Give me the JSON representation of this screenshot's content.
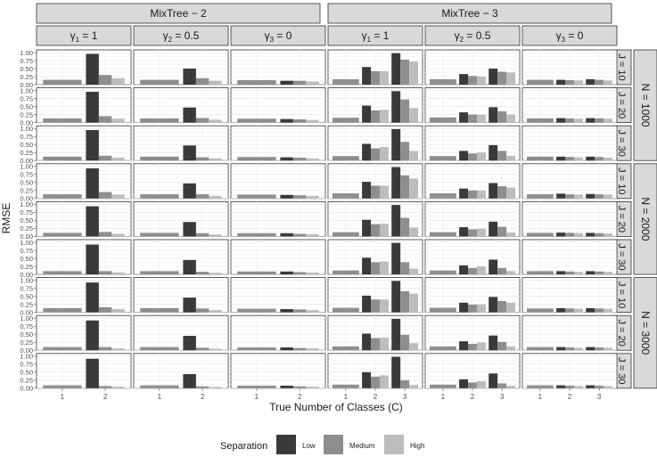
{
  "chart_data": {
    "type": "bar",
    "ylabel": "RMSE",
    "xlabel": "True Number of Classes (C)",
    "ylim": [
      0,
      1
    ],
    "yticks": [
      "0.00",
      "0.25",
      "0.50",
      "0.75",
      "1.00"
    ],
    "grid": true,
    "legend": {
      "title": "Separation",
      "position": "bottom",
      "items": [
        {
          "name": "Low",
          "color": "#3a3a3a"
        },
        {
          "name": "Medium",
          "color": "#8e8e8e"
        },
        {
          "name": "High",
          "color": "#bdbdbd"
        }
      ]
    },
    "models": [
      {
        "label": "MixTree − 2",
        "categories": [
          "1",
          "2"
        ]
      },
      {
        "label": "MixTree − 3",
        "categories": [
          "1",
          "2",
          "3"
        ]
      }
    ],
    "gammas": [
      {
        "sym": "γ",
        "sub": "1",
        "rest": " = 1"
      },
      {
        "sym": "γ",
        "sub": "2",
        "rest": " = 0.5"
      },
      {
        "sym": "γ",
        "sub": "3",
        "rest": " = 0"
      }
    ],
    "n_groups": [
      {
        "label": "N = 1000",
        "rows": [
          "J = 10",
          "J = 20",
          "J = 30"
        ]
      },
      {
        "label": "N = 2000",
        "rows": [
          "J = 10",
          "J = 20",
          "J = 30"
        ]
      },
      {
        "label": "N = 3000",
        "rows": [
          "J = 10",
          "J = 20",
          "J = 30"
        ]
      }
    ],
    "series": [
      "Low",
      "Medium",
      "High"
    ],
    "values": [
      [
        [
          [
            0.15
          ],
          [
            0.96,
            0.3,
            0.2
          ]
        ],
        [
          [
            0.15
          ],
          [
            0.5,
            0.2,
            0.12
          ]
        ],
        [
          [
            0.14
          ],
          [
            0.12,
            0.12,
            0.1
          ]
        ],
        [
          [
            0.17
          ],
          [
            0.55,
            0.42,
            0.42
          ],
          [
            0.98,
            0.78,
            0.72
          ]
        ],
        [
          [
            0.17
          ],
          [
            0.33,
            0.27,
            0.25
          ],
          [
            0.5,
            0.4,
            0.38
          ]
        ],
        [
          [
            0.15
          ],
          [
            0.15,
            0.14,
            0.13
          ],
          [
            0.17,
            0.15,
            0.13
          ]
        ]
      ],
      [
        [
          [
            0.13
          ],
          [
            0.96,
            0.2,
            0.12
          ]
        ],
        [
          [
            0.13
          ],
          [
            0.47,
            0.14,
            0.09
          ]
        ],
        [
          [
            0.12
          ],
          [
            0.11,
            0.1,
            0.08
          ]
        ],
        [
          [
            0.15
          ],
          [
            0.53,
            0.38,
            0.4
          ],
          [
            0.98,
            0.72,
            0.45
          ]
        ],
        [
          [
            0.16
          ],
          [
            0.32,
            0.25,
            0.25
          ],
          [
            0.48,
            0.35,
            0.25
          ]
        ],
        [
          [
            0.13
          ],
          [
            0.14,
            0.13,
            0.12
          ],
          [
            0.14,
            0.13,
            0.12
          ]
        ]
      ],
      [
        [
          [
            0.12
          ],
          [
            0.95,
            0.15,
            0.09
          ]
        ],
        [
          [
            0.12
          ],
          [
            0.47,
            0.1,
            0.07
          ]
        ],
        [
          [
            0.11
          ],
          [
            0.1,
            0.09,
            0.07
          ]
        ],
        [
          [
            0.14
          ],
          [
            0.52,
            0.38,
            0.42
          ],
          [
            0.98,
            0.58,
            0.3
          ]
        ],
        [
          [
            0.14
          ],
          [
            0.3,
            0.22,
            0.25
          ],
          [
            0.48,
            0.3,
            0.15
          ]
        ],
        [
          [
            0.12
          ],
          [
            0.12,
            0.11,
            0.1
          ],
          [
            0.12,
            0.11,
            0.09
          ]
        ]
      ],
      [
        [
          [
            0.13
          ],
          [
            0.94,
            0.2,
            0.12
          ]
        ],
        [
          [
            0.13
          ],
          [
            0.47,
            0.13,
            0.08
          ]
        ],
        [
          [
            0.12
          ],
          [
            0.11,
            0.1,
            0.08
          ]
        ],
        [
          [
            0.16
          ],
          [
            0.52,
            0.4,
            0.4
          ],
          [
            0.98,
            0.72,
            0.62
          ]
        ],
        [
          [
            0.16
          ],
          [
            0.31,
            0.25,
            0.25
          ],
          [
            0.48,
            0.38,
            0.34
          ]
        ],
        [
          [
            0.13
          ],
          [
            0.15,
            0.13,
            0.12
          ],
          [
            0.14,
            0.13,
            0.12
          ]
        ]
      ],
      [
        [
          [
            0.11
          ],
          [
            0.94,
            0.14,
            0.08
          ]
        ],
        [
          [
            0.11
          ],
          [
            0.45,
            0.1,
            0.06
          ]
        ],
        [
          [
            0.1
          ],
          [
            0.1,
            0.08,
            0.07
          ]
        ],
        [
          [
            0.13
          ],
          [
            0.52,
            0.38,
            0.4
          ],
          [
            0.98,
            0.58,
            0.28
          ]
        ],
        [
          [
            0.13
          ],
          [
            0.29,
            0.22,
            0.24
          ],
          [
            0.46,
            0.3,
            0.12
          ]
        ],
        [
          [
            0.11
          ],
          [
            0.12,
            0.11,
            0.1
          ],
          [
            0.11,
            0.1,
            0.09
          ]
        ]
      ],
      [
        [
          [
            0.1
          ],
          [
            0.93,
            0.1,
            0.06
          ]
        ],
        [
          [
            0.1
          ],
          [
            0.45,
            0.08,
            0.05
          ]
        ],
        [
          [
            0.09
          ],
          [
            0.09,
            0.07,
            0.06
          ]
        ],
        [
          [
            0.12
          ],
          [
            0.52,
            0.38,
            0.4
          ],
          [
            0.98,
            0.38,
            0.18
          ]
        ],
        [
          [
            0.12
          ],
          [
            0.28,
            0.2,
            0.25
          ],
          [
            0.46,
            0.2,
            0.1
          ]
        ],
        [
          [
            0.1
          ],
          [
            0.1,
            0.09,
            0.08
          ],
          [
            0.1,
            0.09,
            0.08
          ]
        ]
      ],
      [
        [
          [
            0.13
          ],
          [
            0.93,
            0.16,
            0.1
          ]
        ],
        [
          [
            0.13
          ],
          [
            0.46,
            0.12,
            0.07
          ]
        ],
        [
          [
            0.11
          ],
          [
            0.1,
            0.09,
            0.07
          ]
        ],
        [
          [
            0.14
          ],
          [
            0.52,
            0.4,
            0.4
          ],
          [
            0.98,
            0.66,
            0.58
          ]
        ],
        [
          [
            0.14
          ],
          [
            0.3,
            0.24,
            0.25
          ],
          [
            0.48,
            0.35,
            0.3
          ]
        ],
        [
          [
            0.12
          ],
          [
            0.13,
            0.12,
            0.11
          ],
          [
            0.13,
            0.12,
            0.11
          ]
        ]
      ],
      [
        [
          [
            0.1
          ],
          [
            0.93,
            0.1,
            0.06
          ]
        ],
        [
          [
            0.1
          ],
          [
            0.45,
            0.08,
            0.05
          ]
        ],
        [
          [
            0.09
          ],
          [
            0.09,
            0.07,
            0.06
          ]
        ],
        [
          [
            0.12
          ],
          [
            0.52,
            0.38,
            0.4
          ],
          [
            0.98,
            0.48,
            0.22
          ]
        ],
        [
          [
            0.12
          ],
          [
            0.28,
            0.2,
            0.24
          ],
          [
            0.46,
            0.26,
            0.12
          ]
        ],
        [
          [
            0.1
          ],
          [
            0.1,
            0.09,
            0.08
          ],
          [
            0.1,
            0.09,
            0.08
          ]
        ]
      ],
      [
        [
          [
            0.09
          ],
          [
            0.92,
            0.07,
            0.05
          ]
        ],
        [
          [
            0.09
          ],
          [
            0.44,
            0.06,
            0.04
          ]
        ],
        [
          [
            0.08
          ],
          [
            0.08,
            0.06,
            0.05
          ]
        ],
        [
          [
            0.11
          ],
          [
            0.5,
            0.36,
            0.4
          ],
          [
            0.98,
            0.25,
            0.1
          ]
        ],
        [
          [
            0.11
          ],
          [
            0.28,
            0.18,
            0.22
          ],
          [
            0.46,
            0.15,
            0.08
          ]
        ],
        [
          [
            0.09
          ],
          [
            0.09,
            0.08,
            0.07
          ],
          [
            0.09,
            0.08,
            0.07
          ]
        ]
      ]
    ]
  }
}
